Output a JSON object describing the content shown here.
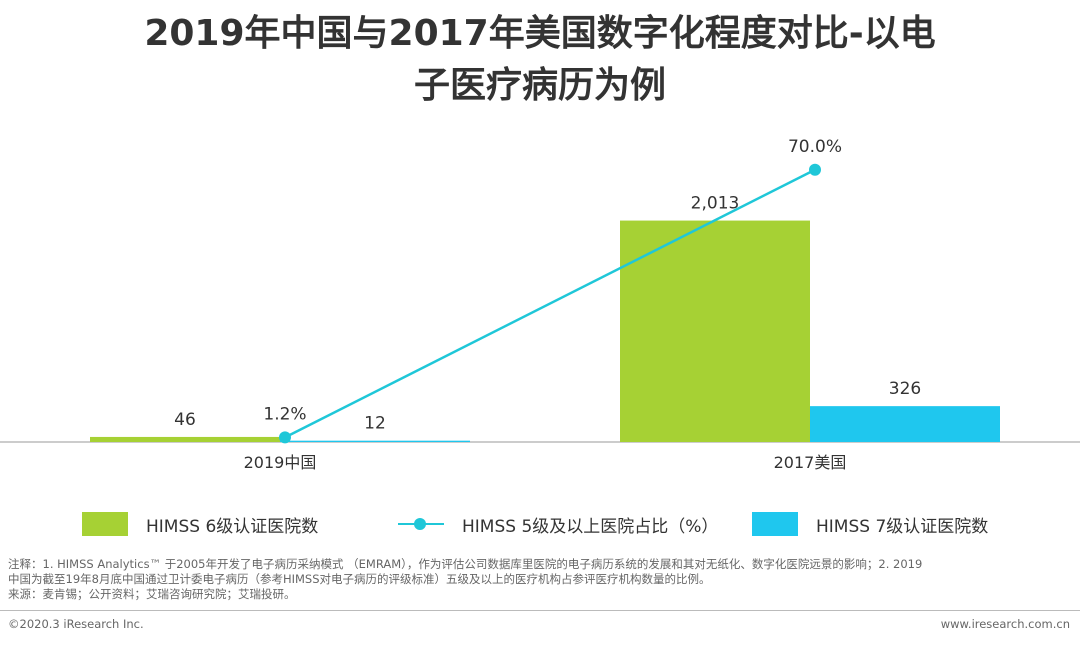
{
  "title_line1": "2019年中国与2017年美国数字化程度对比-以电",
  "title_line2": "子医疗病历为例",
  "chart_data": {
    "type": "bar",
    "categories": [
      "2019中国",
      "2017美国"
    ],
    "series": [
      {
        "name": "HIMSS 6级认证医院数",
        "type": "bar",
        "color": "#a6d134",
        "values": [
          46,
          2013
        ],
        "labels": [
          "46",
          "2,013"
        ]
      },
      {
        "name": "HIMSS 7级认证医院数",
        "type": "bar",
        "color": "#1fc7ee",
        "values": [
          12,
          326
        ],
        "labels": [
          "12",
          "326"
        ]
      },
      {
        "name": "HIMSS 5级及以上医院占比（%）",
        "type": "line",
        "color": "#1fc7d8",
        "values": [
          1.2,
          70.0
        ],
        "labels": [
          "1.2%",
          "70.0%"
        ],
        "axis": "secondary"
      }
    ],
    "ylim": [
      0,
      2500
    ],
    "y2lim": [
      0,
      90
    ],
    "grid": false,
    "legend": "bottom"
  },
  "legend": {
    "bar6": "HIMSS 6级认证医院数",
    "line5": "HIMSS 5级及以上医院占比（%）",
    "bar7": "HIMSS 7级认证医院数"
  },
  "notes": {
    "line1": "注释：1. HIMSS Analytics™ 于2005年开发了电子病历采纳模式 （EMRAM），作为评估公司数据库里医院的电子病历系统的发展和其对无纸化、数字化医院远景的影响；2. 2019",
    "line2": "中国为截至19年8月底中国通过卫计委电子病历（参考HIMSS对电子病历的评级标准）五级及以上的医疗机构占参评医疗机构数量的比例。",
    "line3": "来源：麦肯锡；公开资料；艾瑞咨询研究院；艾瑞投研。"
  },
  "footer": {
    "left": "©2020.3 iResearch Inc.",
    "right": "www.iresearch.com.cn"
  }
}
